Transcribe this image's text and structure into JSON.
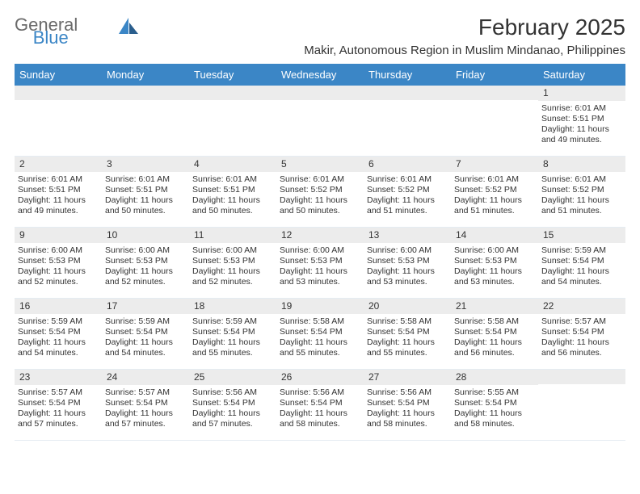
{
  "logo": {
    "word1": "General",
    "word2": "Blue"
  },
  "title": "February 2025",
  "subtitle": "Makir, Autonomous Region in Muslim Mindanao, Philippines",
  "colors": {
    "header_bg": "#3b86c6",
    "header_text": "#ffffff",
    "daynum_bg": "#ececec",
    "page_bg": "#ffffff",
    "text": "#333333",
    "logo_gray": "#6a6a6a",
    "logo_blue": "#3b86c6"
  },
  "typography": {
    "title_fontsize": 28,
    "subtitle_fontsize": 15,
    "dayhead_fontsize": 13,
    "cell_fontsize": 10.5,
    "daynum_fontsize": 12
  },
  "day_names": [
    "Sunday",
    "Monday",
    "Tuesday",
    "Wednesday",
    "Thursday",
    "Friday",
    "Saturday"
  ],
  "weeks": [
    [
      null,
      null,
      null,
      null,
      null,
      null,
      {
        "n": "1",
        "sr": "Sunrise: 6:01 AM",
        "ss": "Sunset: 5:51 PM",
        "dl": "Daylight: 11 hours and 49 minutes."
      }
    ],
    [
      {
        "n": "2",
        "sr": "Sunrise: 6:01 AM",
        "ss": "Sunset: 5:51 PM",
        "dl": "Daylight: 11 hours and 49 minutes."
      },
      {
        "n": "3",
        "sr": "Sunrise: 6:01 AM",
        "ss": "Sunset: 5:51 PM",
        "dl": "Daylight: 11 hours and 50 minutes."
      },
      {
        "n": "4",
        "sr": "Sunrise: 6:01 AM",
        "ss": "Sunset: 5:51 PM",
        "dl": "Daylight: 11 hours and 50 minutes."
      },
      {
        "n": "5",
        "sr": "Sunrise: 6:01 AM",
        "ss": "Sunset: 5:52 PM",
        "dl": "Daylight: 11 hours and 50 minutes."
      },
      {
        "n": "6",
        "sr": "Sunrise: 6:01 AM",
        "ss": "Sunset: 5:52 PM",
        "dl": "Daylight: 11 hours and 51 minutes."
      },
      {
        "n": "7",
        "sr": "Sunrise: 6:01 AM",
        "ss": "Sunset: 5:52 PM",
        "dl": "Daylight: 11 hours and 51 minutes."
      },
      {
        "n": "8",
        "sr": "Sunrise: 6:01 AM",
        "ss": "Sunset: 5:52 PM",
        "dl": "Daylight: 11 hours and 51 minutes."
      }
    ],
    [
      {
        "n": "9",
        "sr": "Sunrise: 6:00 AM",
        "ss": "Sunset: 5:53 PM",
        "dl": "Daylight: 11 hours and 52 minutes."
      },
      {
        "n": "10",
        "sr": "Sunrise: 6:00 AM",
        "ss": "Sunset: 5:53 PM",
        "dl": "Daylight: 11 hours and 52 minutes."
      },
      {
        "n": "11",
        "sr": "Sunrise: 6:00 AM",
        "ss": "Sunset: 5:53 PM",
        "dl": "Daylight: 11 hours and 52 minutes."
      },
      {
        "n": "12",
        "sr": "Sunrise: 6:00 AM",
        "ss": "Sunset: 5:53 PM",
        "dl": "Daylight: 11 hours and 53 minutes."
      },
      {
        "n": "13",
        "sr": "Sunrise: 6:00 AM",
        "ss": "Sunset: 5:53 PM",
        "dl": "Daylight: 11 hours and 53 minutes."
      },
      {
        "n": "14",
        "sr": "Sunrise: 6:00 AM",
        "ss": "Sunset: 5:53 PM",
        "dl": "Daylight: 11 hours and 53 minutes."
      },
      {
        "n": "15",
        "sr": "Sunrise: 5:59 AM",
        "ss": "Sunset: 5:54 PM",
        "dl": "Daylight: 11 hours and 54 minutes."
      }
    ],
    [
      {
        "n": "16",
        "sr": "Sunrise: 5:59 AM",
        "ss": "Sunset: 5:54 PM",
        "dl": "Daylight: 11 hours and 54 minutes."
      },
      {
        "n": "17",
        "sr": "Sunrise: 5:59 AM",
        "ss": "Sunset: 5:54 PM",
        "dl": "Daylight: 11 hours and 54 minutes."
      },
      {
        "n": "18",
        "sr": "Sunrise: 5:59 AM",
        "ss": "Sunset: 5:54 PM",
        "dl": "Daylight: 11 hours and 55 minutes."
      },
      {
        "n": "19",
        "sr": "Sunrise: 5:58 AM",
        "ss": "Sunset: 5:54 PM",
        "dl": "Daylight: 11 hours and 55 minutes."
      },
      {
        "n": "20",
        "sr": "Sunrise: 5:58 AM",
        "ss": "Sunset: 5:54 PM",
        "dl": "Daylight: 11 hours and 55 minutes."
      },
      {
        "n": "21",
        "sr": "Sunrise: 5:58 AM",
        "ss": "Sunset: 5:54 PM",
        "dl": "Daylight: 11 hours and 56 minutes."
      },
      {
        "n": "22",
        "sr": "Sunrise: 5:57 AM",
        "ss": "Sunset: 5:54 PM",
        "dl": "Daylight: 11 hours and 56 minutes."
      }
    ],
    [
      {
        "n": "23",
        "sr": "Sunrise: 5:57 AM",
        "ss": "Sunset: 5:54 PM",
        "dl": "Daylight: 11 hours and 57 minutes."
      },
      {
        "n": "24",
        "sr": "Sunrise: 5:57 AM",
        "ss": "Sunset: 5:54 PM",
        "dl": "Daylight: 11 hours and 57 minutes."
      },
      {
        "n": "25",
        "sr": "Sunrise: 5:56 AM",
        "ss": "Sunset: 5:54 PM",
        "dl": "Daylight: 11 hours and 57 minutes."
      },
      {
        "n": "26",
        "sr": "Sunrise: 5:56 AM",
        "ss": "Sunset: 5:54 PM",
        "dl": "Daylight: 11 hours and 58 minutes."
      },
      {
        "n": "27",
        "sr": "Sunrise: 5:56 AM",
        "ss": "Sunset: 5:54 PM",
        "dl": "Daylight: 11 hours and 58 minutes."
      },
      {
        "n": "28",
        "sr": "Sunrise: 5:55 AM",
        "ss": "Sunset: 5:54 PM",
        "dl": "Daylight: 11 hours and 58 minutes."
      },
      null
    ]
  ]
}
